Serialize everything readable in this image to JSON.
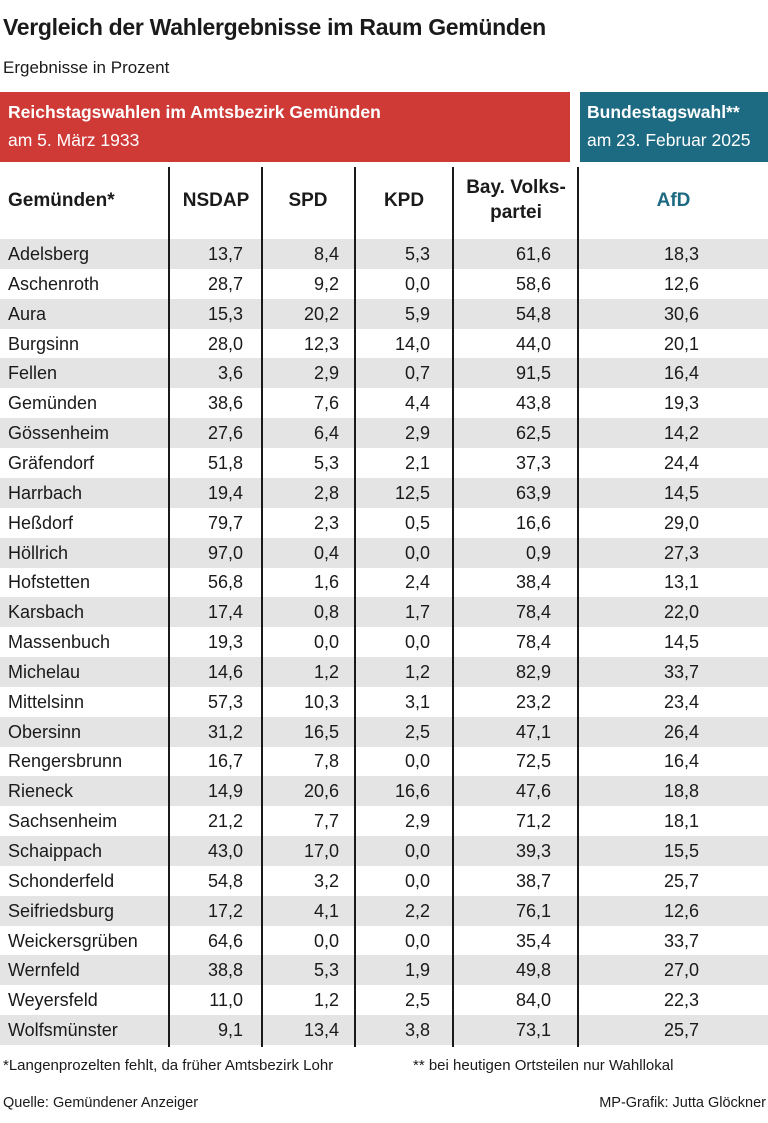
{
  "title": "Vergleich der Wahlergebnisse im Raum Gemünden",
  "subtitle": "Ergebnisse in Prozent",
  "banner_left": {
    "line1": "Reichstagswahlen im Amtsbezirk Gemünden",
    "line2": "am 5. März 1933"
  },
  "banner_right": {
    "line1": "Bundestagswahl**",
    "line2": "am 23. Februar 2025"
  },
  "colors": {
    "red_banner": "#cf3a37",
    "blue_banner": "#1d6a83",
    "row_shade": "#e4e4e4",
    "afd_header": "#1d6a83"
  },
  "chart_data": {
    "type": "table",
    "columns": [
      "Gemünden*",
      "NSDAP",
      "SPD",
      "KPD",
      "Bay. Volks-\npartei",
      "AfD"
    ],
    "rows": [
      [
        "Adelsberg",
        "13,7",
        "8,4",
        "5,3",
        "61,6",
        "18,3"
      ],
      [
        "Aschenroth",
        "28,7",
        "9,2",
        "0,0",
        "58,6",
        "12,6"
      ],
      [
        "Aura",
        "15,3",
        "20,2",
        "5,9",
        "54,8",
        "30,6"
      ],
      [
        "Burgsinn",
        "28,0",
        "12,3",
        "14,0",
        "44,0",
        "20,1"
      ],
      [
        "Fellen",
        "3,6",
        "2,9",
        "0,7",
        "91,5",
        "16,4"
      ],
      [
        "Gemünden",
        "38,6",
        "7,6",
        "4,4",
        "43,8",
        "19,3"
      ],
      [
        "Gössenheim",
        "27,6",
        "6,4",
        "2,9",
        "62,5",
        "14,2"
      ],
      [
        "Gräfendorf",
        "51,8",
        "5,3",
        "2,1",
        "37,3",
        "24,4"
      ],
      [
        "Harrbach",
        "19,4",
        "2,8",
        "12,5",
        "63,9",
        "14,5"
      ],
      [
        "Heßdorf",
        "79,7",
        "2,3",
        "0,5",
        "16,6",
        "29,0"
      ],
      [
        "Höllrich",
        "97,0",
        "0,4",
        "0,0",
        "0,9",
        "27,3"
      ],
      [
        "Hofstetten",
        "56,8",
        "1,6",
        "2,4",
        "38,4",
        "13,1"
      ],
      [
        "Karsbach",
        "17,4",
        "0,8",
        "1,7",
        "78,4",
        "22,0"
      ],
      [
        "Massenbuch",
        "19,3",
        "0,0",
        "0,0",
        "78,4",
        "14,5"
      ],
      [
        "Michelau",
        "14,6",
        "1,2",
        "1,2",
        "82,9",
        "33,7"
      ],
      [
        "Mittelsinn",
        "57,3",
        "10,3",
        "3,1",
        "23,2",
        "23,4"
      ],
      [
        "Obersinn",
        "31,2",
        "16,5",
        "2,5",
        "47,1",
        "26,4"
      ],
      [
        "Rengersbrunn",
        "16,7",
        "7,8",
        "0,0",
        "72,5",
        "16,4"
      ],
      [
        "Rieneck",
        "14,9",
        "20,6",
        "16,6",
        "47,6",
        "18,8"
      ],
      [
        "Sachsenheim",
        "21,2",
        "7,7",
        "2,9",
        "71,2",
        "18,1"
      ],
      [
        "Schaippach",
        "43,0",
        "17,0",
        "0,0",
        "39,3",
        "15,5"
      ],
      [
        "Schonderfeld",
        "54,8",
        "3,2",
        "0,0",
        "38,7",
        "25,7"
      ],
      [
        "Seifriedsburg",
        "17,2",
        "4,1",
        "2,2",
        "76,1",
        "12,6"
      ],
      [
        "Weickersgrüben",
        "64,6",
        "0,0",
        "0,0",
        "35,4",
        "33,7"
      ],
      [
        "Wernfeld",
        "38,8",
        "5,3",
        "1,9",
        "49,8",
        "27,0"
      ],
      [
        "Weyersfeld",
        "11,0",
        "1,2",
        "2,5",
        "84,0",
        "22,3"
      ],
      [
        "Wolfsmünster",
        "9,1",
        "13,4",
        "3,8",
        "73,1",
        "25,7"
      ]
    ]
  },
  "footnotes": {
    "left": "*Langenprozelten fehlt, da früher Amtsbezirk Lohr",
    "right": "** bei heutigen Ortsteilen nur Wahllokal"
  },
  "source": {
    "left": "Quelle: Gemündener Anzeiger",
    "right": "MP-Grafik: Jutta Glöckner"
  }
}
